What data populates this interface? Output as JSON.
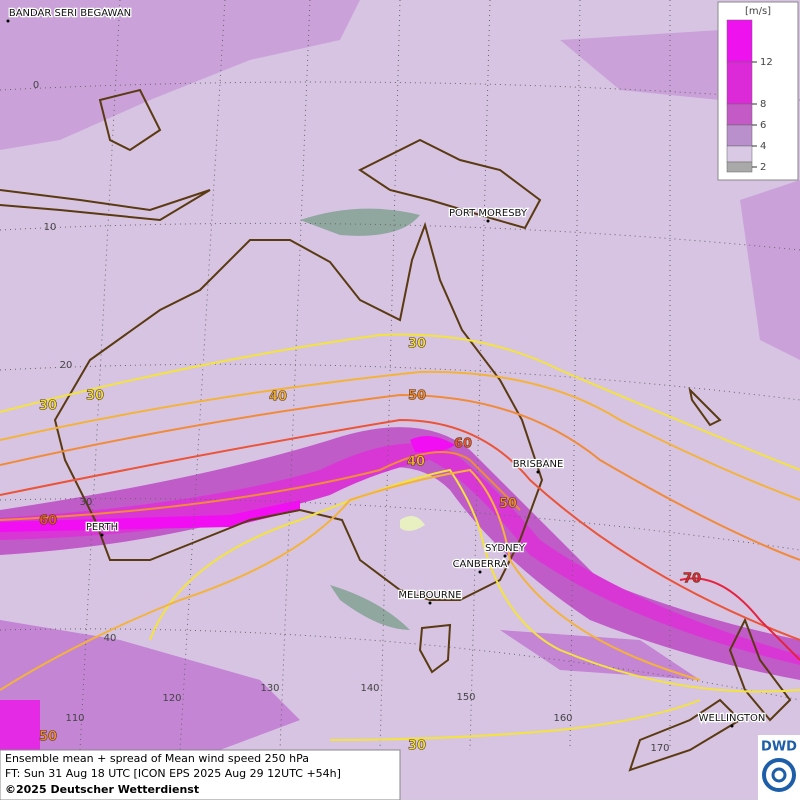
{
  "cities": [
    "BANDAR SERI BEGAWAN",
    "PORT MORESBY",
    "BRISBANE",
    "SYDNEY",
    "CANBERRA",
    "MELBOURNE",
    "PERTH",
    "WELLINGTON"
  ],
  "latitude_labels": [
    0,
    10,
    20,
    30,
    40
  ],
  "longitude_labels": [
    110,
    120,
    130,
    140,
    150,
    160,
    170
  ],
  "contour_labels": [
    30,
    30,
    30,
    40,
    50,
    60,
    40,
    50,
    60,
    70,
    50,
    30
  ],
  "legend": {
    "unit": "[m/s]",
    "ticks": [
      12,
      8,
      6,
      4,
      2
    ],
    "colors": [
      "#ee12ee",
      "#dc2ad8",
      "#c45ac6",
      "#b98fcc",
      "#d9c9e4",
      "#a9a9a9"
    ]
  },
  "footer": {
    "line1": "Ensemble mean + spread of Mean wind speed 250 hPa",
    "line2": "FT: Sun 31 Aug 18 UTC [ICON EPS 2025 Aug 29 12UTC +54h]",
    "line3": "©2025 Deutscher Wetterdienst"
  },
  "logo": "DWD"
}
